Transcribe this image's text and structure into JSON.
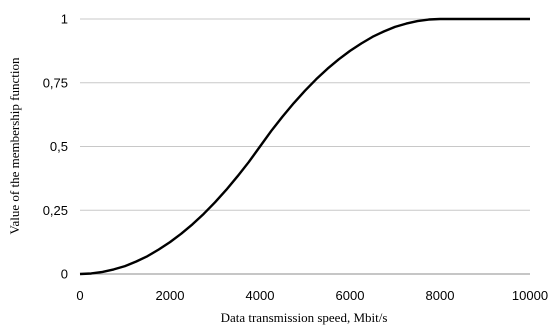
{
  "chart_data": {
    "type": "line",
    "title": "",
    "xlabel": "Data transmission speed, Mbit/s",
    "ylabel": "Value of the membership function",
    "xlim": [
      0,
      10000
    ],
    "ylim": [
      0,
      1
    ],
    "x_ticks": [
      0,
      2000,
      4000,
      6000,
      8000,
      10000
    ],
    "x_tick_labels": [
      "0",
      "2000",
      "4000",
      "6000",
      "8000",
      "10000"
    ],
    "y_ticks": [
      0,
      0.25,
      0.5,
      0.75,
      1
    ],
    "y_tick_labels": [
      "0",
      "0,25",
      "0,5",
      "0,75",
      "1"
    ],
    "grid": "horizontal",
    "legend": "none",
    "series": [
      {
        "color": "#000000",
        "x": [
          0,
          250,
          500,
          750,
          1000,
          1250,
          1500,
          1750,
          2000,
          2250,
          2500,
          2750,
          3000,
          3250,
          3500,
          3750,
          4000,
          4250,
          4500,
          4750,
          5000,
          5250,
          5500,
          5750,
          6000,
          6250,
          6500,
          6750,
          7000,
          7250,
          7500,
          7750,
          8000,
          9000,
          10000
        ],
        "y": [
          0,
          0.002,
          0.008,
          0.018,
          0.031,
          0.049,
          0.07,
          0.096,
          0.125,
          0.158,
          0.195,
          0.236,
          0.281,
          0.33,
          0.383,
          0.439,
          0.5,
          0.561,
          0.617,
          0.67,
          0.719,
          0.764,
          0.805,
          0.842,
          0.875,
          0.904,
          0.93,
          0.951,
          0.969,
          0.982,
          0.992,
          0.998,
          1,
          1,
          1
        ]
      }
    ]
  }
}
